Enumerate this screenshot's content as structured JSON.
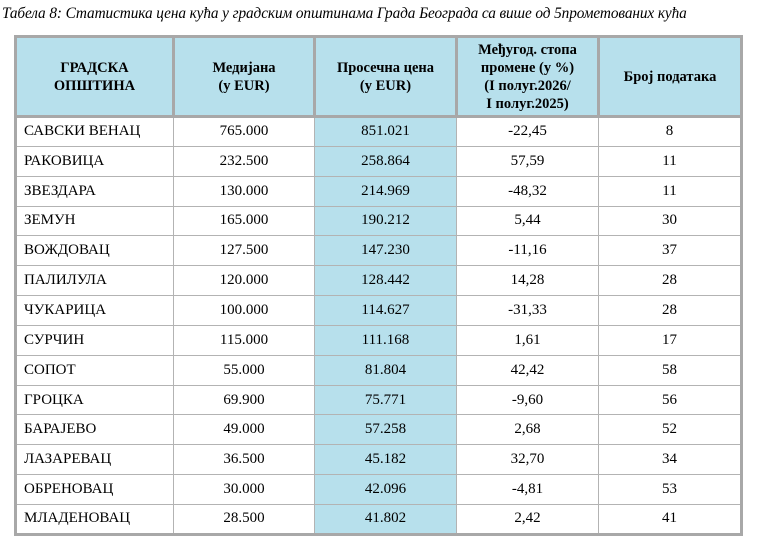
{
  "caption": "Табела 8: Статистика цена кућа у градским општинама Града Београда са више од 5прометованих кућа",
  "headers": {
    "municipality": [
      "ГРАДСКА",
      "ОПШТИНА"
    ],
    "median": [
      "Медијана",
      "(у EUR)"
    ],
    "average": [
      "Просечна цена",
      "(у EUR)"
    ],
    "change": [
      "Међугод. стопа",
      "промене (у %)",
      "(I полуг.2026/",
      "I полуг.2025)"
    ],
    "count": [
      "Број података"
    ]
  },
  "rows": [
    {
      "name": "САВСКИ ВЕНАЦ",
      "median": "765.000",
      "average": "851.021",
      "change": "-22,45",
      "count": "8"
    },
    {
      "name": "РАКОВИЦА",
      "median": "232.500",
      "average": "258.864",
      "change": "57,59",
      "count": "11"
    },
    {
      "name": "ЗВЕЗДАРА",
      "median": "130.000",
      "average": "214.969",
      "change": "-48,32",
      "count": "11"
    },
    {
      "name": "ЗЕМУН",
      "median": "165.000",
      "average": "190.212",
      "change": "5,44",
      "count": "30"
    },
    {
      "name": "ВОЖДОВАЦ",
      "median": "127.500",
      "average": "147.230",
      "change": "-11,16",
      "count": "37"
    },
    {
      "name": "ПАЛИЛУЛА",
      "median": "120.000",
      "average": "128.442",
      "change": "14,28",
      "count": "28"
    },
    {
      "name": "ЧУКАРИЦА",
      "median": "100.000",
      "average": "114.627",
      "change": "-31,33",
      "count": "28"
    },
    {
      "name": "СУРЧИН",
      "median": "115.000",
      "average": "111.168",
      "change": "1,61",
      "count": "17"
    },
    {
      "name": "СОПОТ",
      "median": "55.000",
      "average": "81.804",
      "change": "42,42",
      "count": "58"
    },
    {
      "name": "ГРОЦКА",
      "median": "69.900",
      "average": "75.771",
      "change": "-9,60",
      "count": "56"
    },
    {
      "name": "БАРАЈЕВО",
      "median": "49.000",
      "average": "57.258",
      "change": "2,68",
      "count": "52"
    },
    {
      "name": "ЛАЗАРЕВАЦ",
      "median": "36.500",
      "average": "45.182",
      "change": "32,70",
      "count": "34"
    },
    {
      "name": "ОБРЕНОВАЦ",
      "median": "30.000",
      "average": "42.096",
      "change": "-4,81",
      "count": "53"
    },
    {
      "name": "МЛАДЕНОВАЦ",
      "median": "28.500",
      "average": "41.802",
      "change": "2,42",
      "count": "41"
    }
  ]
}
